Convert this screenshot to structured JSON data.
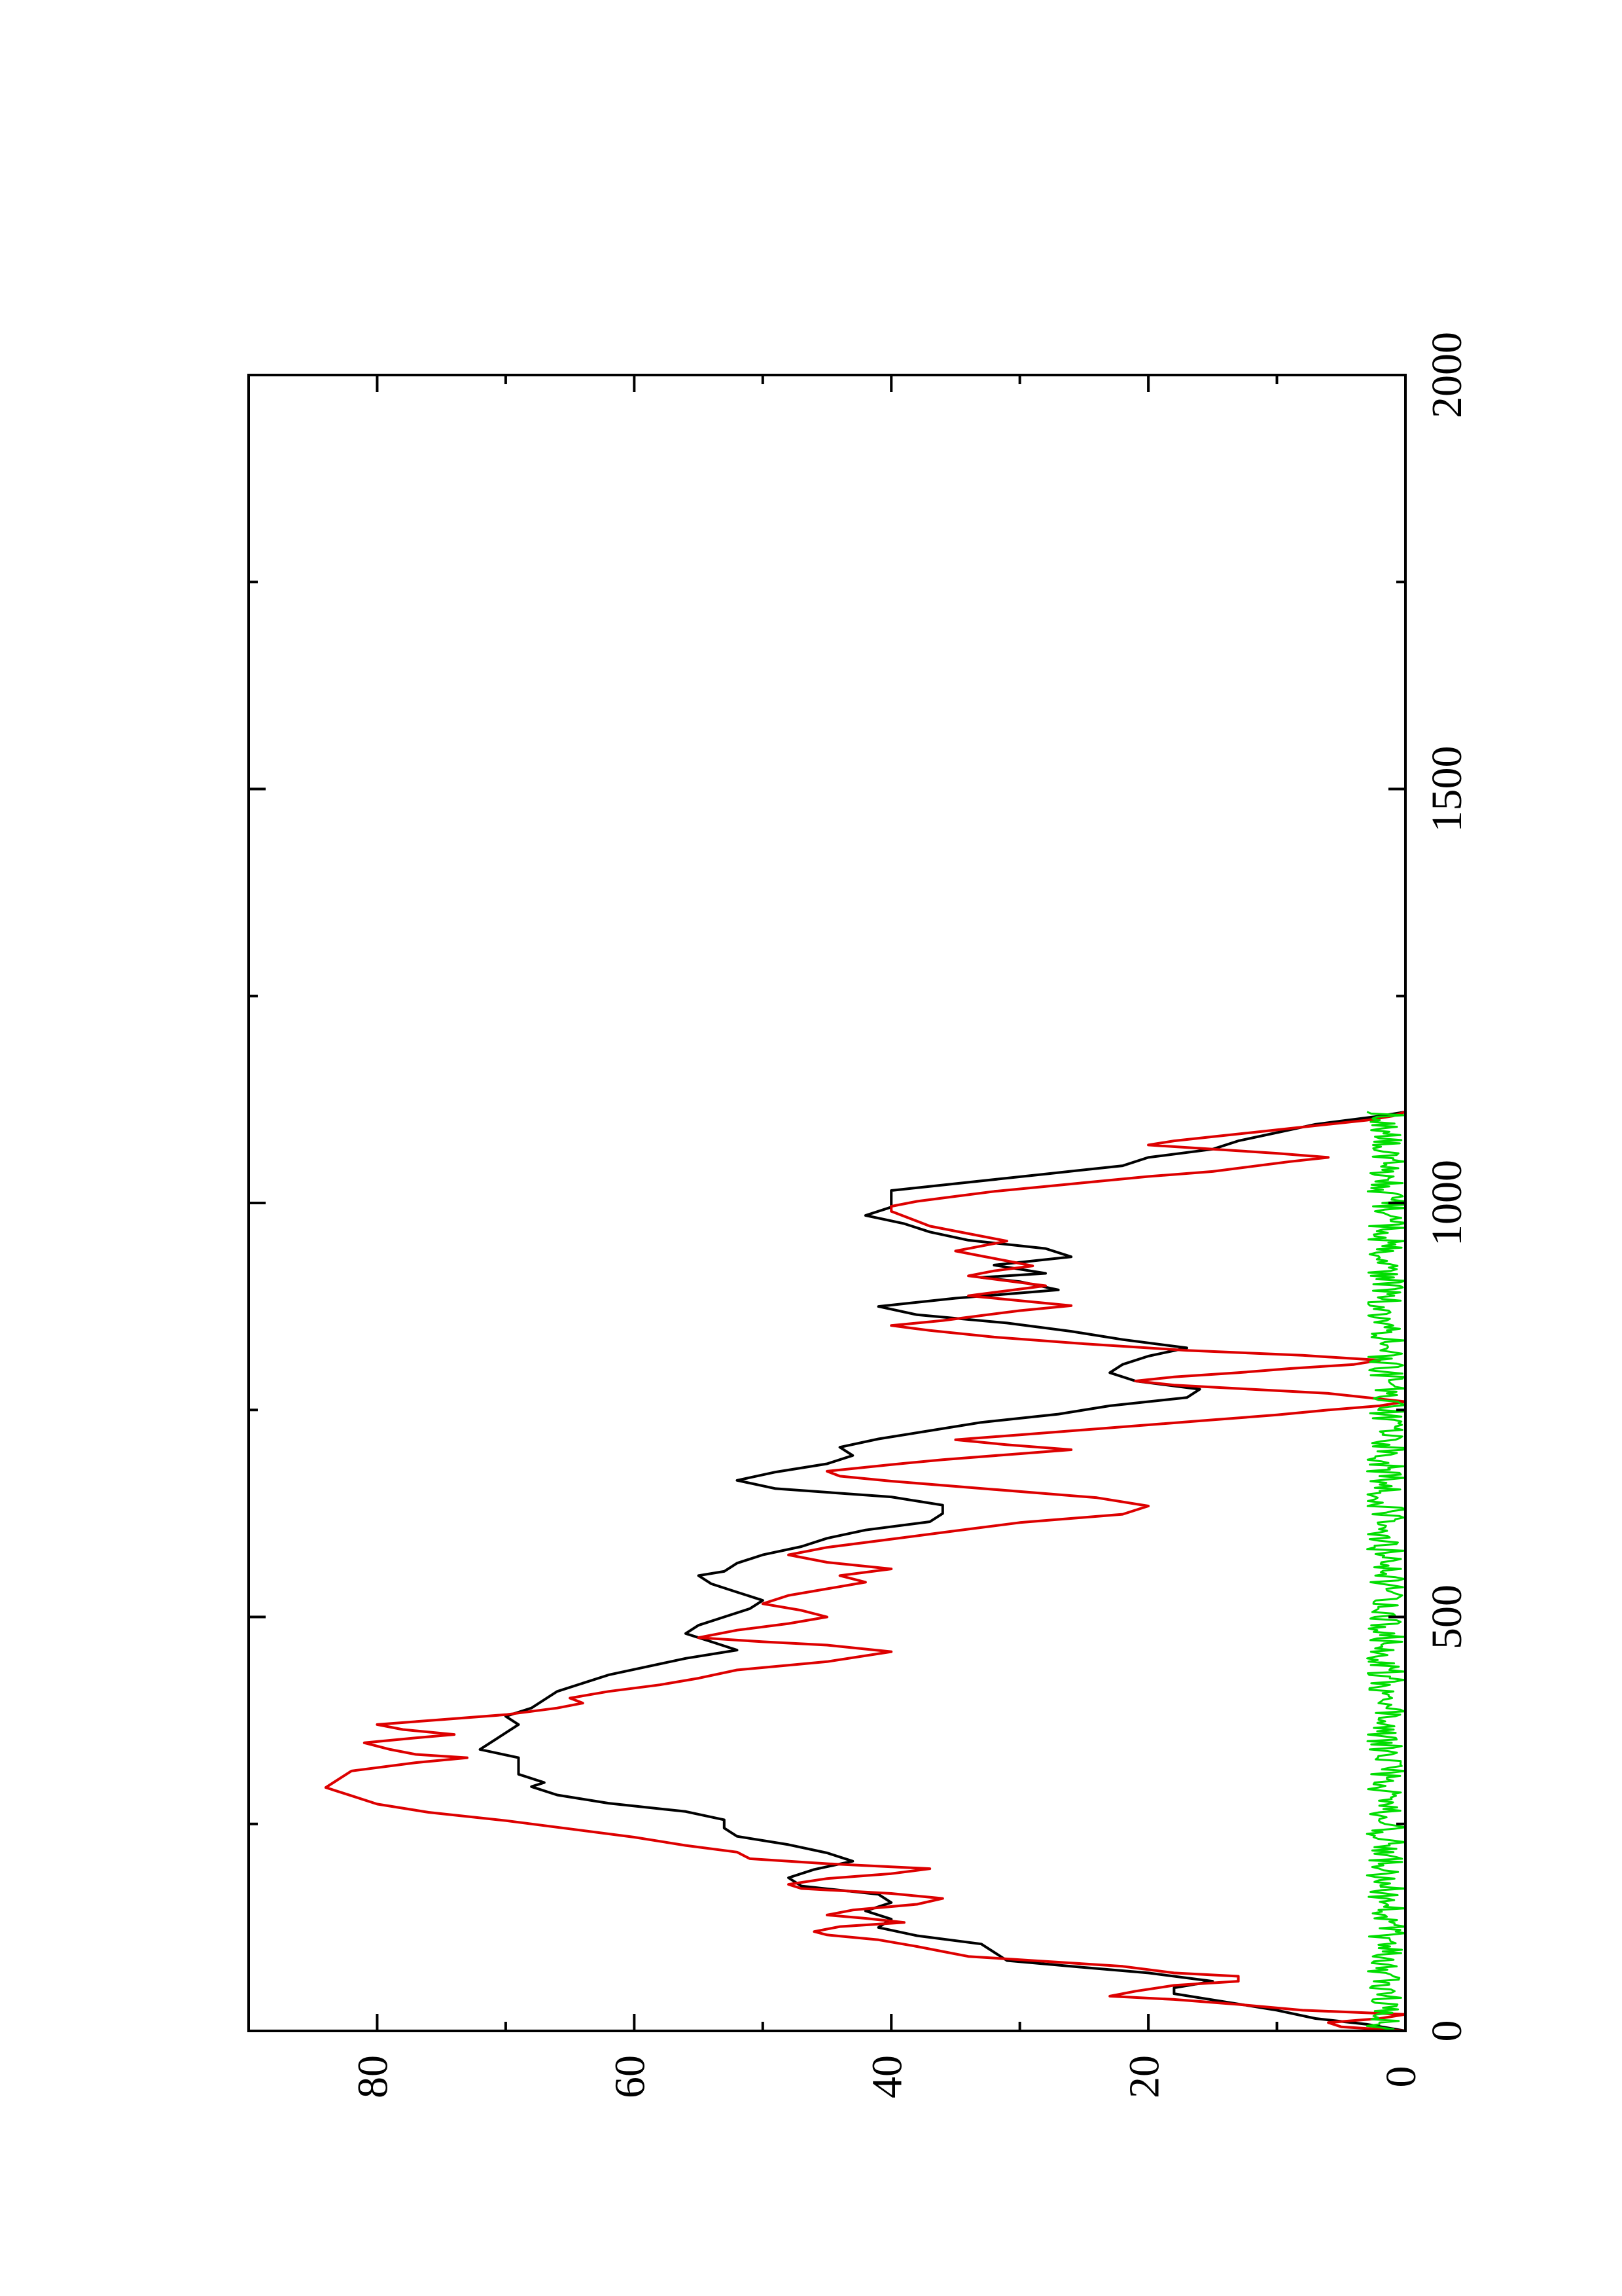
{
  "chart_data": {
    "type": "line",
    "rotated": "page rotated 90 degrees counter-clockwise",
    "title": "",
    "xlabel": "",
    "ylabel": "",
    "xlim": [
      0,
      2000
    ],
    "ylim": [
      0,
      90
    ],
    "x_ticks": [
      0,
      500,
      1000,
      1500,
      2000
    ],
    "y_ticks": [
      0,
      20,
      40,
      60,
      80
    ],
    "grid": false,
    "legend": "none",
    "series": [
      {
        "color": "#000000",
        "points": [
          [
            0,
            0
          ],
          [
            8,
            3
          ],
          [
            15,
            7
          ],
          [
            25,
            10
          ],
          [
            35,
            14
          ],
          [
            45,
            18
          ],
          [
            52,
            18
          ],
          [
            60,
            15
          ],
          [
            70,
            20
          ],
          [
            78,
            26
          ],
          [
            85,
            31
          ],
          [
            95,
            32
          ],
          [
            105,
            33
          ],
          [
            115,
            38
          ],
          [
            125,
            41
          ],
          [
            135,
            40
          ],
          [
            145,
            42
          ],
          [
            155,
            40
          ],
          [
            165,
            41
          ],
          [
            175,
            47
          ],
          [
            185,
            48
          ],
          [
            195,
            46
          ],
          [
            205,
            43
          ],
          [
            215,
            45
          ],
          [
            225,
            48
          ],
          [
            235,
            52
          ],
          [
            245,
            53
          ],
          [
            255,
            53
          ],
          [
            265,
            56
          ],
          [
            275,
            62
          ],
          [
            285,
            66
          ],
          [
            295,
            68
          ],
          [
            300,
            67
          ],
          [
            310,
            69
          ],
          [
            320,
            69
          ],
          [
            330,
            69
          ],
          [
            340,
            72
          ],
          [
            350,
            71
          ],
          [
            360,
            70
          ],
          [
            370,
            69
          ],
          [
            380,
            70
          ],
          [
            390,
            68
          ],
          [
            400,
            67
          ],
          [
            410,
            66
          ],
          [
            420,
            64
          ],
          [
            430,
            62
          ],
          [
            440,
            59
          ],
          [
            450,
            56
          ],
          [
            460,
            52
          ],
          [
            470,
            54
          ],
          [
            480,
            56
          ],
          [
            490,
            55
          ],
          [
            500,
            53
          ],
          [
            510,
            51
          ],
          [
            520,
            50
          ],
          [
            530,
            52
          ],
          [
            540,
            54
          ],
          [
            550,
            55
          ],
          [
            555,
            53
          ],
          [
            565,
            52
          ],
          [
            575,
            50
          ],
          [
            585,
            47
          ],
          [
            595,
            45
          ],
          [
            605,
            42
          ],
          [
            615,
            37
          ],
          [
            625,
            36
          ],
          [
            635,
            36
          ],
          [
            645,
            40
          ],
          [
            655,
            49
          ],
          [
            665,
            52
          ],
          [
            675,
            49
          ],
          [
            685,
            45
          ],
          [
            695,
            43
          ],
          [
            705,
            44
          ],
          [
            715,
            41
          ],
          [
            725,
            37
          ],
          [
            735,
            33
          ],
          [
            745,
            27
          ],
          [
            755,
            23
          ],
          [
            765,
            17
          ],
          [
            775,
            16
          ],
          [
            785,
            21
          ],
          [
            795,
            23
          ],
          [
            805,
            22
          ],
          [
            815,
            20
          ],
          [
            825,
            17
          ],
          [
            835,
            22
          ],
          [
            845,
            26
          ],
          [
            855,
            31
          ],
          [
            865,
            38
          ],
          [
            875,
            41
          ],
          [
            885,
            35
          ],
          [
            895,
            27
          ],
          [
            905,
            30
          ],
          [
            910,
            33
          ],
          [
            915,
            28
          ],
          [
            925,
            32
          ],
          [
            935,
            26
          ],
          [
            945,
            28
          ],
          [
            955,
            34
          ],
          [
            965,
            37
          ],
          [
            975,
            39
          ],
          [
            985,
            42
          ],
          [
            995,
            40
          ],
          [
            1005,
            40
          ],
          [
            1015,
            40
          ],
          [
            1025,
            34
          ],
          [
            1035,
            28
          ],
          [
            1045,
            22
          ],
          [
            1055,
            20
          ],
          [
            1065,
            15
          ],
          [
            1075,
            13
          ],
          [
            1085,
            10
          ],
          [
            1095,
            7
          ],
          [
            1105,
            2
          ],
          [
            1110,
            0
          ]
        ]
      },
      {
        "color": "#dd0000",
        "points": [
          [
            0,
            0
          ],
          [
            5,
            5
          ],
          [
            10,
            6
          ],
          [
            15,
            2
          ],
          [
            20,
            0
          ],
          [
            25,
            8
          ],
          [
            32,
            13
          ],
          [
            38,
            18
          ],
          [
            42,
            23
          ],
          [
            48,
            21
          ],
          [
            55,
            18
          ],
          [
            60,
            13
          ],
          [
            66,
            13
          ],
          [
            70,
            18
          ],
          [
            78,
            22
          ],
          [
            84,
            28
          ],
          [
            90,
            34
          ],
          [
            96,
            36
          ],
          [
            102,
            38
          ],
          [
            110,
            41
          ],
          [
            116,
            45
          ],
          [
            120,
            46
          ],
          [
            126,
            44
          ],
          [
            131,
            39
          ],
          [
            136,
            42
          ],
          [
            140,
            45
          ],
          [
            146,
            43
          ],
          [
            153,
            38
          ],
          [
            160,
            36
          ],
          [
            166,
            40
          ],
          [
            172,
            47
          ],
          [
            177,
            48
          ],
          [
            184,
            45
          ],
          [
            190,
            40
          ],
          [
            196,
            37
          ],
          [
            202,
            45
          ],
          [
            208,
            51
          ],
          [
            216,
            52
          ],
          [
            224,
            56
          ],
          [
            234,
            60
          ],
          [
            244,
            65
          ],
          [
            254,
            70
          ],
          [
            264,
            76
          ],
          [
            274,
            80
          ],
          [
            284,
            82
          ],
          [
            294,
            84
          ],
          [
            304,
            83
          ],
          [
            314,
            82
          ],
          [
            324,
            77
          ],
          [
            330,
            73
          ],
          [
            334,
            77
          ],
          [
            340,
            79
          ],
          [
            348,
            81
          ],
          [
            354,
            77
          ],
          [
            358,
            74
          ],
          [
            364,
            78
          ],
          [
            370,
            80
          ],
          [
            376,
            75
          ],
          [
            382,
            70
          ],
          [
            390,
            66
          ],
          [
            396,
            64
          ],
          [
            402,
            65
          ],
          [
            410,
            62
          ],
          [
            418,
            58
          ],
          [
            426,
            55
          ],
          [
            436,
            52
          ],
          [
            446,
            45
          ],
          [
            458,
            40
          ],
          [
            466,
            45
          ],
          [
            470,
            50
          ],
          [
            475,
            55
          ],
          [
            484,
            52
          ],
          [
            492,
            48
          ],
          [
            500,
            45
          ],
          [
            508,
            47
          ],
          [
            516,
            50
          ],
          [
            526,
            48
          ],
          [
            534,
            45
          ],
          [
            542,
            42
          ],
          [
            550,
            44
          ],
          [
            558,
            40
          ],
          [
            566,
            45
          ],
          [
            575,
            48
          ],
          [
            584,
            45
          ],
          [
            594,
            40
          ],
          [
            604,
            35
          ],
          [
            614,
            30
          ],
          [
            624,
            22
          ],
          [
            634,
            20
          ],
          [
            644,
            24
          ],
          [
            654,
            32
          ],
          [
            664,
            40
          ],
          [
            670,
            44
          ],
          [
            676,
            45
          ],
          [
            684,
            40
          ],
          [
            690,
            36
          ],
          [
            696,
            31
          ],
          [
            702,
            26
          ],
          [
            708,
            31
          ],
          [
            714,
            35
          ],
          [
            720,
            30
          ],
          [
            726,
            25
          ],
          [
            732,
            20
          ],
          [
            738,
            15
          ],
          [
            744,
            10
          ],
          [
            750,
            6
          ],
          [
            755,
            2
          ],
          [
            760,
            0
          ],
          [
            765,
            3
          ],
          [
            770,
            6
          ],
          [
            775,
            12
          ],
          [
            780,
            18
          ],
          [
            785,
            21
          ],
          [
            790,
            18
          ],
          [
            795,
            13
          ],
          [
            800,
            9
          ],
          [
            805,
            4
          ],
          [
            810,
            2
          ],
          [
            816,
            8
          ],
          [
            822,
            17
          ],
          [
            830,
            25
          ],
          [
            838,
            32
          ],
          [
            846,
            37
          ],
          [
            852,
            40
          ],
          [
            858,
            36
          ],
          [
            864,
            33
          ],
          [
            870,
            30
          ],
          [
            876,
            26
          ],
          [
            882,
            30
          ],
          [
            888,
            34
          ],
          [
            894,
            31
          ],
          [
            900,
            28
          ],
          [
            906,
            31
          ],
          [
            912,
            34
          ],
          [
            918,
            32
          ],
          [
            924,
            29
          ],
          [
            930,
            31
          ],
          [
            936,
            33
          ],
          [
            942,
            35
          ],
          [
            948,
            33
          ],
          [
            954,
            31
          ],
          [
            960,
            33
          ],
          [
            966,
            35
          ],
          [
            972,
            37
          ],
          [
            978,
            38
          ],
          [
            984,
            39
          ],
          [
            990,
            40
          ],
          [
            996,
            40
          ],
          [
            1002,
            38
          ],
          [
            1008,
            35
          ],
          [
            1014,
            32
          ],
          [
            1020,
            28
          ],
          [
            1026,
            24
          ],
          [
            1032,
            20
          ],
          [
            1038,
            15
          ],
          [
            1044,
            12
          ],
          [
            1050,
            9
          ],
          [
            1055,
            6
          ],
          [
            1060,
            10
          ],
          [
            1065,
            15
          ],
          [
            1070,
            20
          ],
          [
            1075,
            18
          ],
          [
            1080,
            15
          ],
          [
            1085,
            12
          ],
          [
            1090,
            9
          ],
          [
            1095,
            6
          ],
          [
            1100,
            3
          ],
          [
            1105,
            1
          ],
          [
            1110,
            0
          ]
        ]
      },
      {
        "color": "#00dd00",
        "noise": true,
        "x_range": [
          0,
          1110
        ],
        "amplitude_range": [
          0,
          3
        ]
      }
    ]
  }
}
